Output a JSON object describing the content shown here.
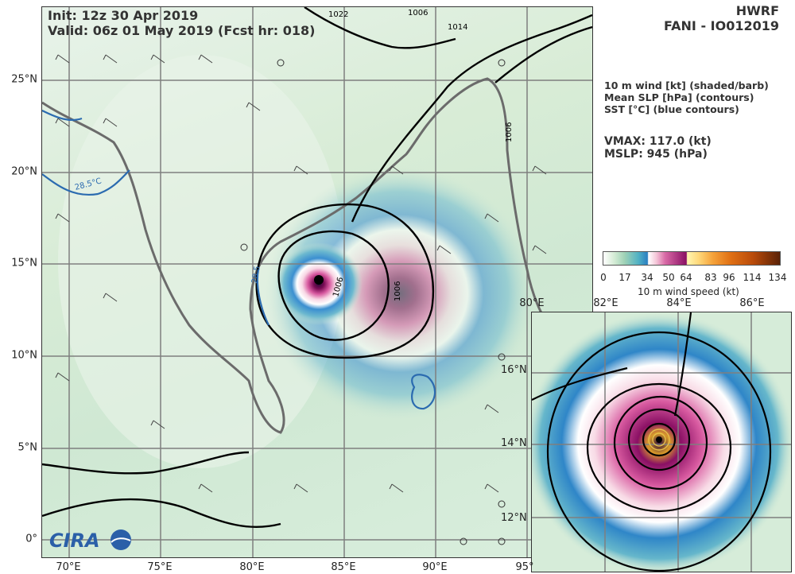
{
  "header": {
    "init": "Init:  12z 30 Apr 2019",
    "valid": "Valid: 06z 01 May 2019 (Fcst hr: 018)",
    "model": "HWRF",
    "storm": "FANI - IO012019"
  },
  "legend": {
    "line1": "10 m wind [kt] (shaded/barb)",
    "line2": "Mean SLP [hPa] (contours)",
    "line3": "SST [°C] (blue contours)"
  },
  "stats": {
    "vmax": "VMAX: 117.0 (kt)",
    "mslp": "MSLP:  945 (hPa)"
  },
  "colorbar": {
    "ticks": [
      "0",
      "17",
      "34",
      "50",
      "64",
      "83",
      "96",
      "114",
      "134"
    ],
    "title": "10 m wind speed (kt)"
  },
  "main_axes": {
    "lat_labels": [
      "25°N",
      "20°N",
      "15°N",
      "10°N",
      "5°N",
      "0°"
    ],
    "lon_labels": [
      "70°E",
      "75°E",
      "80°E",
      "85°E",
      "90°E",
      "95°"
    ]
  },
  "inset_axes": {
    "lon_labels": [
      "80°E",
      "82°E",
      "84°E",
      "86°E"
    ],
    "lat_labels": [
      "16°N",
      "14°N",
      "12°N"
    ]
  },
  "contour_labels": {
    "sst": [
      "28.5°C",
      "28.5"
    ],
    "slp": [
      "1006",
      "1006",
      "1006",
      "1014",
      "1022",
      "1006",
      "1006",
      "1006"
    ]
  },
  "logo": {
    "text": "CIRA"
  }
}
